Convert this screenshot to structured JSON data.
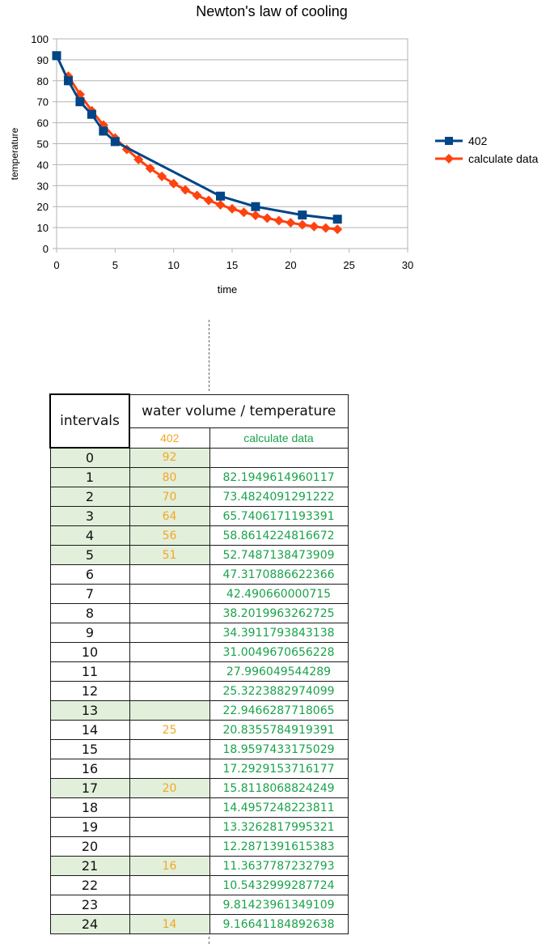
{
  "chart_data": {
    "type": "line",
    "title": "Newton's law of cooling",
    "xlabel": "time",
    "ylabel": "temperature",
    "xlim": [
      0,
      30
    ],
    "ylim": [
      0,
      100
    ],
    "x_ticks": [
      0,
      5,
      10,
      15,
      20,
      25,
      30
    ],
    "y_ticks": [
      0,
      10,
      20,
      30,
      40,
      50,
      60,
      70,
      80,
      90,
      100
    ],
    "grid": "horizontal",
    "legend_position": "right",
    "series": [
      {
        "name": "402",
        "color": "#004586",
        "marker": "square",
        "x": [
          0,
          1,
          2,
          3,
          4,
          5,
          14,
          17,
          21,
          24
        ],
        "y": [
          92,
          80,
          70,
          64,
          56,
          51,
          25,
          20,
          16,
          14
        ]
      },
      {
        "name": "calculate data",
        "color": "#ff420e",
        "marker": "diamond",
        "x": [
          1,
          2,
          3,
          4,
          5,
          6,
          7,
          8,
          9,
          10,
          11,
          12,
          13,
          14,
          15,
          16,
          17,
          18,
          19,
          20,
          21,
          22,
          23,
          24
        ],
        "y": [
          82.19,
          73.48,
          65.74,
          58.86,
          52.75,
          47.32,
          42.49,
          38.2,
          34.39,
          31.0,
          28.0,
          25.32,
          22.95,
          20.84,
          18.96,
          17.29,
          15.81,
          14.5,
          13.33,
          12.29,
          11.36,
          10.54,
          9.81,
          9.17
        ]
      }
    ]
  },
  "table": {
    "header_intervals": "intervals",
    "header_group": "water volume / temperature",
    "header_col2": "402",
    "header_col3": "calculate data",
    "rows": [
      {
        "interval": "0",
        "measured": "92",
        "calc": "",
        "highlight": true
      },
      {
        "interval": "1",
        "measured": "80",
        "calc": "82.1949614960117",
        "highlight": true
      },
      {
        "interval": "2",
        "measured": "70",
        "calc": "73.4824091291222",
        "highlight": true
      },
      {
        "interval": "3",
        "measured": "64",
        "calc": "65.7406171193391",
        "highlight": true
      },
      {
        "interval": "4",
        "measured": "56",
        "calc": "58.8614224816672",
        "highlight": true
      },
      {
        "interval": "5",
        "measured": "51",
        "calc": "52.7487138473909",
        "highlight": true
      },
      {
        "interval": "6",
        "measured": "",
        "calc": "47.3170886622366",
        "highlight": false
      },
      {
        "interval": "7",
        "measured": "",
        "calc": "42.490660000715",
        "highlight": false
      },
      {
        "interval": "8",
        "measured": "",
        "calc": "38.2019963262725",
        "highlight": false
      },
      {
        "interval": "9",
        "measured": "",
        "calc": "34.3911793843138",
        "highlight": false
      },
      {
        "interval": "10",
        "measured": "",
        "calc": "31.0049670656228",
        "highlight": false
      },
      {
        "interval": "11",
        "measured": "",
        "calc": "27.996049544289",
        "highlight": false
      },
      {
        "interval": "12",
        "measured": "",
        "calc": "25.3223882974099",
        "highlight": false
      },
      {
        "interval": "13",
        "measured": "",
        "calc": "22.9466287718065",
        "highlight": true
      },
      {
        "interval": "14",
        "measured": "25",
        "calc": "20.8355784919391",
        "highlight": false
      },
      {
        "interval": "15",
        "measured": "",
        "calc": "18.9597433175029",
        "highlight": false
      },
      {
        "interval": "16",
        "measured": "",
        "calc": "17.2929153716177",
        "highlight": false
      },
      {
        "interval": "17",
        "measured": "20",
        "calc": "15.8118068824249",
        "highlight": true
      },
      {
        "interval": "18",
        "measured": "",
        "calc": "14.4957248223811",
        "highlight": false
      },
      {
        "interval": "19",
        "measured": "",
        "calc": "13.3262817995321",
        "highlight": false
      },
      {
        "interval": "20",
        "measured": "",
        "calc": "12.2871391615383",
        "highlight": false
      },
      {
        "interval": "21",
        "measured": "16",
        "calc": "11.3637787232793",
        "highlight": true
      },
      {
        "interval": "22",
        "measured": "",
        "calc": "10.5432999287724",
        "highlight": false
      },
      {
        "interval": "23",
        "measured": "",
        "calc": "9.81423961349109",
        "highlight": false
      },
      {
        "interval": "24",
        "measured": "14",
        "calc": "9.16641184892638",
        "highlight": true
      }
    ]
  }
}
